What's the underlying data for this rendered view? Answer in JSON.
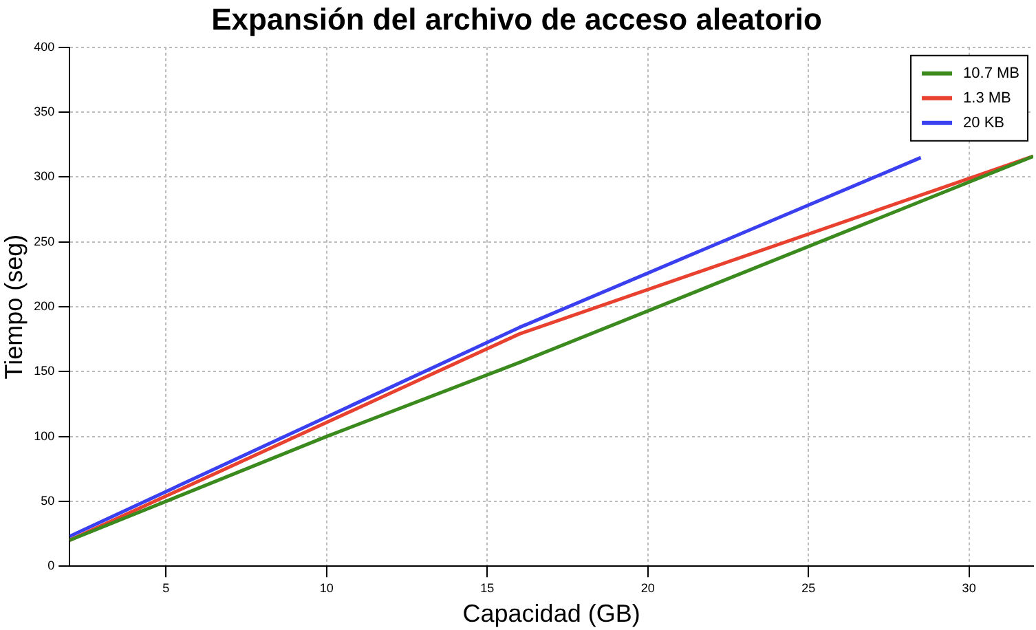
{
  "chart_data": {
    "type": "line",
    "title": "Expansión del archivo de acceso aleatorio",
    "xlabel": "Capacidad (GB)",
    "ylabel": "Tiempo (seg)",
    "xlim": [
      2,
      32
    ],
    "xticks": [
      5,
      10,
      15,
      20,
      25,
      30
    ],
    "ylim": [
      0,
      400
    ],
    "yticks": [
      0,
      50,
      100,
      150,
      200,
      250,
      300,
      350,
      400
    ],
    "grid": true,
    "legend": "top right",
    "marker": "none",
    "line_style": "solid",
    "series": [
      {
        "name": "10.7 MB",
        "color": "#3a8a1e",
        "x": [
          2,
          10,
          16,
          32
        ],
        "values": [
          20,
          100,
          157,
          316
        ]
      },
      {
        "name": "1.3 MB",
        "color": "#e8412f",
        "x": [
          2,
          16,
          32
        ],
        "values": [
          20,
          179,
          316
        ]
      },
      {
        "name": "20 KB",
        "color": "#3a3ff0",
        "x": [
          2,
          16,
          28.5
        ],
        "values": [
          23,
          184,
          315
        ]
      }
    ]
  }
}
